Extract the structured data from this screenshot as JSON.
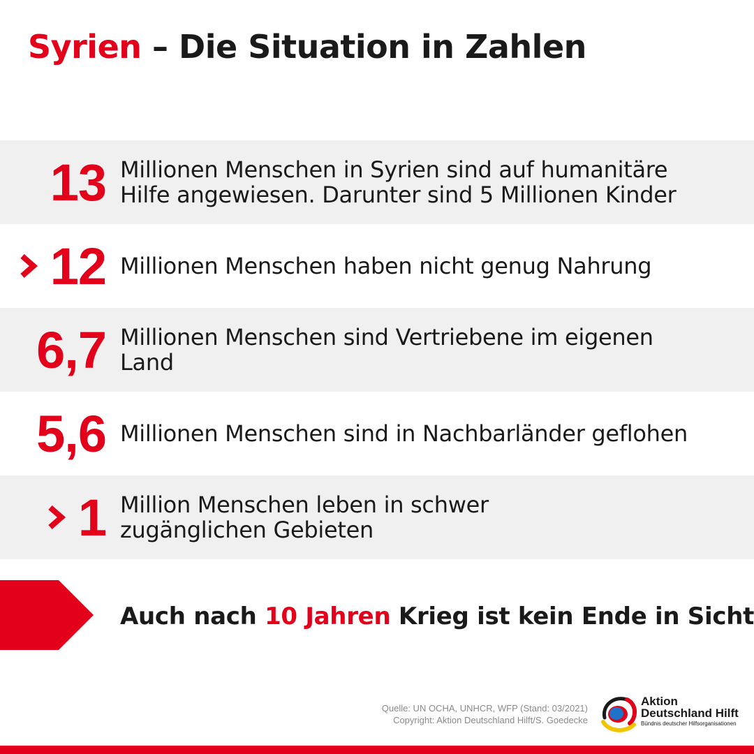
{
  "title": {
    "highlight": "Syrien",
    "rest": " – Die Situation in Zahlen"
  },
  "stats": [
    {
      "number": "13",
      "prefix": "",
      "lines": [
        "Millionen Menschen in Syrien sind auf humanitäre",
        "Hilfe angewiesen. Darunter sind 5 Millionen Kinder"
      ]
    },
    {
      "number": "12",
      "prefix": ">",
      "lines": [
        "Millionen Menschen haben nicht genug Nahrung"
      ]
    },
    {
      "number": "6,7",
      "prefix": "",
      "lines": [
        "Millionen Menschen sind Vertriebene im eigenen",
        "Land"
      ]
    },
    {
      "number": "5,6",
      "prefix": "",
      "lines": [
        "Millionen Menschen sind in Nachbarländer geflohen"
      ]
    },
    {
      "number": "1",
      "prefix": ">",
      "lines": [
        "Million Menschen leben in schwer",
        "zugänglichen Gebieten"
      ]
    }
  ],
  "closing": {
    "before": "Auch nach ",
    "highlight": "10 Jahren",
    "after": " Krieg ist kein Ende in Sicht"
  },
  "source": {
    "line1": "Quelle: UN OCHA, UNHCR, WFP (Stand: 03/2021)",
    "line2": "Copyright: Aktion Deutschland Hilft/S. Goedecke"
  },
  "logo": {
    "line1": "Aktion",
    "line2": "Deutschland Hilft",
    "tagline": "Bündnis deutscher Hilfsorganisationen"
  },
  "colors": {
    "accent": "#e2001a",
    "row_grey": "#f0f0f0",
    "text": "#1a1a1a"
  },
  "icons": {
    "prefix": "chevron-right-icon",
    "arrow": "arrow-banner-icon",
    "logo": "adh-logo-icon"
  }
}
